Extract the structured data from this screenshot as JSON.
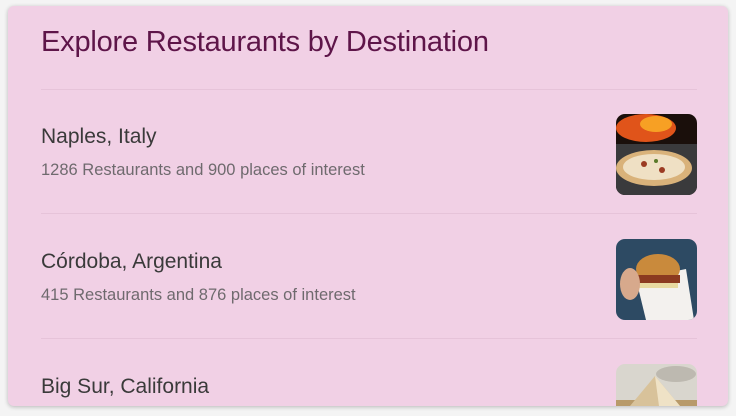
{
  "header": {
    "title": "Explore Restaurants by Destination"
  },
  "colors": {
    "card_background": "#f1d0e5",
    "title": "#5e1549"
  },
  "destinations": [
    {
      "name": "Naples, Italy",
      "description": "1286 Restaurants and 900 places of interest",
      "image": "pizza-photo"
    },
    {
      "name": "Córdoba, Argentina",
      "description": "415 Restaurants and 876 places of interest",
      "image": "burger-photo"
    },
    {
      "name": "Big Sur, California",
      "description": "",
      "image": "tent-photo"
    }
  ]
}
